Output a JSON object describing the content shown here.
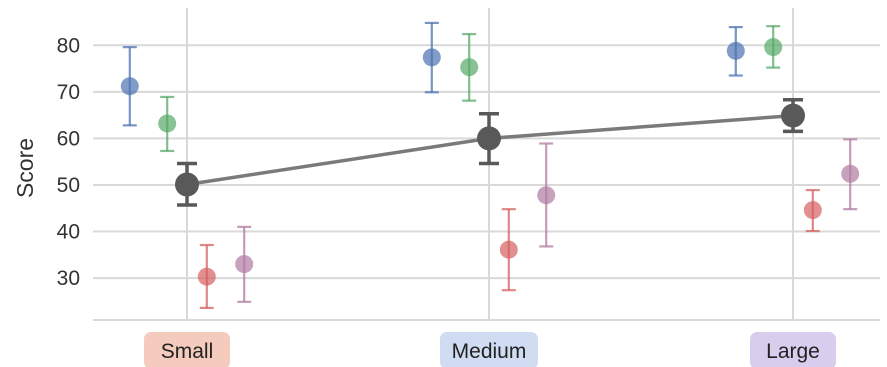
{
  "chart_data": {
    "type": "scatter",
    "title": "",
    "xlabel": "",
    "ylabel": "Score",
    "ylim": [
      21,
      88
    ],
    "yticks": [
      30,
      40,
      50,
      60,
      70,
      80
    ],
    "grid": true,
    "categories": [
      {
        "label": "Small",
        "badge_color": "#f4cbbd"
      },
      {
        "label": "Medium",
        "badge_color": "#cfdcf2"
      },
      {
        "label": "Large",
        "badge_color": "#d9cdee"
      }
    ],
    "series": [
      {
        "color": "#4c72b0",
        "offset": -0.52,
        "points": [
          {
            "category": "Small",
            "y": 71.2,
            "low": 62.8,
            "high": 79.6
          },
          {
            "category": "Medium",
            "y": 77.4,
            "low": 69.9,
            "high": 84.8
          },
          {
            "category": "Large",
            "y": 78.8,
            "low": 73.5,
            "high": 83.9
          }
        ]
      },
      {
        "color": "#55a868",
        "offset": -0.18,
        "points": [
          {
            "category": "Small",
            "y": 63.2,
            "low": 57.3,
            "high": 68.9
          },
          {
            "category": "Medium",
            "y": 75.3,
            "low": 68.1,
            "high": 82.4
          },
          {
            "category": "Large",
            "y": 79.6,
            "low": 75.2,
            "high": 84.1
          }
        ]
      },
      {
        "color": "#d65f5f",
        "offset": 0.18,
        "points": [
          {
            "category": "Small",
            "y": 30.3,
            "low": 23.6,
            "high": 37.1
          },
          {
            "category": "Medium",
            "y": 36.1,
            "low": 27.4,
            "high": 44.8
          },
          {
            "category": "Large",
            "y": 44.6,
            "low": 40.1,
            "high": 48.9
          }
        ]
      },
      {
        "color": "#b07aa1",
        "offset": 0.52,
        "points": [
          {
            "category": "Small",
            "y": 33.0,
            "low": 24.9,
            "high": 41.0
          },
          {
            "category": "Medium",
            "y": 47.8,
            "low": 36.8,
            "high": 58.9
          },
          {
            "category": "Large",
            "y": 52.4,
            "low": 44.8,
            "high": 59.8
          }
        ]
      }
    ],
    "mean_series": {
      "color": "#595959",
      "line_color": "#7a7a7a",
      "points": [
        {
          "category": "Small",
          "y": 50.1,
          "low": 45.7,
          "high": 54.6
        },
        {
          "category": "Medium",
          "y": 60.0,
          "low": 54.6,
          "high": 65.3
        },
        {
          "category": "Large",
          "y": 64.9,
          "low": 61.5,
          "high": 68.3
        }
      ]
    }
  }
}
